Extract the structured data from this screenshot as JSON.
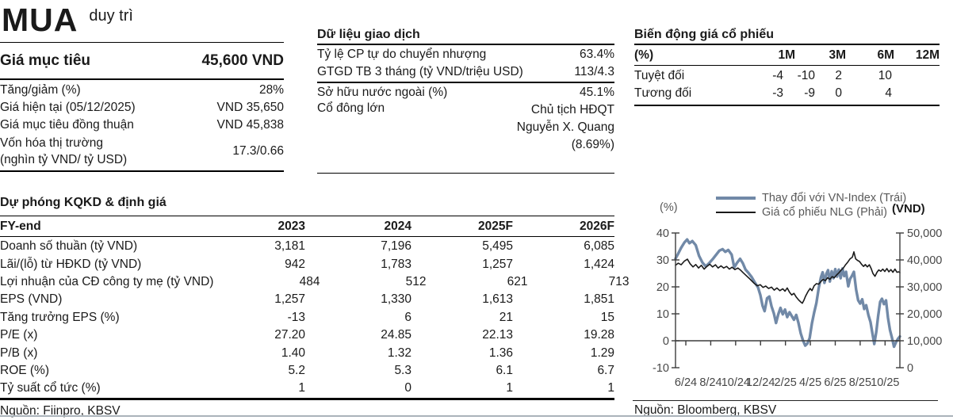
{
  "rating": {
    "action": "MUA",
    "qualifier": "duy trì"
  },
  "target_price": {
    "label": "Giá mục tiêu",
    "value": "45,600 VND",
    "rows": [
      {
        "label": "Tăng/giảm (%)",
        "value": "28%"
      },
      {
        "label": "Giá hiện tại (05/12/2025)",
        "value": "VND 35,650"
      },
      {
        "label": "Giá mục tiêu đồng thuận",
        "value": "VND 45,838"
      },
      {
        "label_lines": [
          "Vốn hóa thị trường",
          "(nghìn tỷ VND/ tỷ USD)"
        ],
        "value": "17.3/0.66"
      }
    ]
  },
  "trading_data": {
    "title": "Dữ liệu giao dịch",
    "group1": [
      {
        "label": "Tỷ lệ CP tự do chuyển nhượng",
        "value": "63.4%"
      },
      {
        "label": "GTGD TB 3 tháng (tỷ VND/triệu USD)",
        "value": "113/4.3"
      }
    ],
    "group2": [
      {
        "label": "Sở hữu nước ngoài (%)",
        "value": "45.1%"
      },
      {
        "label": "Cổ đông lớn",
        "value_lines": [
          "Chủ tịch HĐQT",
          "Nguyễn X. Quang",
          "(8.69%)"
        ]
      }
    ]
  },
  "price_momentum": {
    "title": "Biến động giá cổ phiếu",
    "unit_label": "(%)",
    "col_headers": [
      "1M",
      "3M",
      "6M",
      "12M"
    ],
    "header_right_edges": [
      203,
      267,
      328,
      385
    ],
    "value_right_edges": [
      188,
      228,
      262,
      325
    ],
    "rows": [
      {
        "label": "Tuyệt đối",
        "values": [
          "-4",
          "-10",
          "2",
          "10"
        ]
      },
      {
        "label": "Tương đối",
        "values": [
          "-3",
          "-9",
          "0",
          "4"
        ]
      }
    ]
  },
  "forecast": {
    "title": "Dự phóng KQKD & định giá",
    "col_headers": [
      "FY-end",
      "2023",
      "2024",
      "2025F",
      "2026F"
    ],
    "rows": [
      {
        "label": "Doanh số thuần (tỷ VND)",
        "values": [
          "3,181",
          "7,196",
          "5,495",
          "6,085"
        ]
      },
      {
        "label": "Lãi/(lỗ) từ HĐKD (tỷ VND)",
        "values": [
          "942",
          "1,783",
          "1,257",
          "1,424"
        ]
      },
      {
        "label": "Lợi nhuận của CĐ công ty mẹ  (tỷ VND)",
        "values": [
          "484",
          "512",
          "621",
          "713"
        ]
      },
      {
        "label": "EPS (VND)",
        "values": [
          "1,257",
          "1,330",
          "1,613",
          "1,851"
        ]
      },
      {
        "label": "Tăng trưởng EPS (%)",
        "values": [
          "-13",
          "6",
          "21",
          "15"
        ]
      },
      {
        "label": "P/E (x)",
        "values": [
          "27.20",
          "24.85",
          "22.13",
          "19.28"
        ]
      },
      {
        "label": "P/B (x)",
        "values": [
          "1.40",
          "1.32",
          "1.36",
          "1.29"
        ]
      },
      {
        "label": "ROE (%)",
        "values": [
          "5.2",
          "5.3",
          "6.1",
          "6.7"
        ]
      },
      {
        "label": "Tỷ suất cổ tức (%)",
        "values": [
          "1",
          "0",
          "1",
          "1"
        ]
      }
    ],
    "source": "Nguồn: Fiinpro, KBSV"
  },
  "chart_source": "Nguồn: Bloomberg, KBSV",
  "chart_data": {
    "type": "line",
    "legend": [
      {
        "label": "Thay đổi với VN-Index (Trái)",
        "color": "#7189a7",
        "thickness": 4
      },
      {
        "label": "Giá cổ phiếu NLG (Phải)",
        "color": "#1a1a1a",
        "thickness": 2
      }
    ],
    "left_axis": {
      "label": "(%)",
      "ticks": [
        40,
        30,
        20,
        10,
        0,
        -10
      ],
      "range": [
        -10,
        40
      ]
    },
    "right_axis": {
      "label": "(VND)",
      "tick_values": [
        50000,
        40000,
        30000,
        20000,
        10000,
        0
      ],
      "tick_labels": [
        "50,000",
        "40,000",
        "30,000",
        "20,000",
        "10,000",
        "0"
      ],
      "range": [
        0,
        50000
      ]
    },
    "x_axis": {
      "labels": [
        "6/24",
        "8/24",
        "10/24",
        "12/24",
        "2/25",
        "4/25",
        "6/25",
        "8/25",
        "10/25"
      ],
      "positions": [
        0.046,
        0.157,
        0.268,
        0.379,
        0.49,
        0.601,
        0.712,
        0.823,
        0.934
      ]
    },
    "grid": false,
    "legend_position": "top",
    "series": [
      {
        "name": "Thay đổi với VN-Index (Trái)",
        "axis": "left",
        "color": "#7189a7",
        "stroke_width": 3.4,
        "points": [
          [
            0.0,
            30.5
          ],
          [
            0.01,
            32.0
          ],
          [
            0.025,
            34.5
          ],
          [
            0.04,
            36.5
          ],
          [
            0.052,
            37.6
          ],
          [
            0.062,
            36.2
          ],
          [
            0.075,
            37.0
          ],
          [
            0.09,
            35.5
          ],
          [
            0.105,
            31.5
          ],
          [
            0.12,
            29.0
          ],
          [
            0.135,
            27.6
          ],
          [
            0.15,
            28.8
          ],
          [
            0.165,
            30.2
          ],
          [
            0.18,
            31.8
          ],
          [
            0.195,
            33.4
          ],
          [
            0.21,
            34.0
          ],
          [
            0.222,
            33.0
          ],
          [
            0.235,
            33.7
          ],
          [
            0.25,
            32.0
          ],
          [
            0.262,
            27.2
          ],
          [
            0.275,
            29.0
          ],
          [
            0.288,
            30.4
          ],
          [
            0.3,
            28.8
          ],
          [
            0.312,
            26.4
          ],
          [
            0.325,
            25.2
          ],
          [
            0.34,
            23.6
          ],
          [
            0.355,
            21.4
          ],
          [
            0.368,
            19.8
          ],
          [
            0.378,
            17.0
          ],
          [
            0.388,
            13.0
          ],
          [
            0.397,
            11.0
          ],
          [
            0.408,
            15.8
          ],
          [
            0.418,
            16.4
          ],
          [
            0.428,
            12.8
          ],
          [
            0.438,
            10.2
          ],
          [
            0.448,
            6.6
          ],
          [
            0.458,
            9.8
          ],
          [
            0.468,
            12.2
          ],
          [
            0.478,
            9.8
          ],
          [
            0.488,
            11.6
          ],
          [
            0.498,
            8.8
          ],
          [
            0.508,
            10.6
          ],
          [
            0.518,
            9.2
          ],
          [
            0.528,
            7.8
          ],
          [
            0.538,
            9.6
          ],
          [
            0.548,
            6.6
          ],
          [
            0.558,
            2.8
          ],
          [
            0.568,
            0.2
          ],
          [
            0.578,
            -1.8
          ],
          [
            0.588,
            -1.0
          ],
          [
            0.598,
            1.0
          ],
          [
            0.608,
            6.5
          ],
          [
            0.618,
            10.5
          ],
          [
            0.628,
            14.0
          ],
          [
            0.638,
            19.5
          ],
          [
            0.648,
            23.5
          ],
          [
            0.656,
            25.4
          ],
          [
            0.664,
            21.5
          ],
          [
            0.672,
            24.8
          ],
          [
            0.68,
            26.2
          ],
          [
            0.688,
            22.0
          ],
          [
            0.696,
            25.8
          ],
          [
            0.704,
            23.2
          ],
          [
            0.712,
            26.6
          ],
          [
            0.72,
            23.8
          ],
          [
            0.728,
            26.4
          ],
          [
            0.736,
            23.2
          ],
          [
            0.744,
            26.8
          ],
          [
            0.752,
            24.0
          ],
          [
            0.76,
            25.6
          ],
          [
            0.77,
            20.2
          ],
          [
            0.778,
            23.0
          ],
          [
            0.786,
            24.0
          ],
          [
            0.795,
            25.6
          ],
          [
            0.805,
            19.0
          ],
          [
            0.814,
            15.0
          ],
          [
            0.823,
            13.8
          ],
          [
            0.832,
            15.4
          ],
          [
            0.841,
            11.8
          ],
          [
            0.85,
            13.2
          ],
          [
            0.86,
            9.4
          ],
          [
            0.869,
            7.0
          ],
          [
            0.877,
            3.0
          ],
          [
            0.886,
            -1.2
          ],
          [
            0.895,
            3.4
          ],
          [
            0.903,
            9.0
          ],
          [
            0.912,
            14.4
          ],
          [
            0.92,
            15.6
          ],
          [
            0.929,
            13.6
          ],
          [
            0.938,
            15.0
          ],
          [
            0.947,
            8.5
          ],
          [
            0.956,
            4.0
          ],
          [
            0.965,
            1.0
          ],
          [
            0.974,
            -2.2
          ],
          [
            0.983,
            -0.5
          ],
          [
            0.992,
            0.8
          ],
          [
            1.0,
            1.6
          ]
        ]
      },
      {
        "name": "Giá cổ phiếu NLG (Phải)",
        "axis": "right",
        "color": "#1a1a1a",
        "stroke_width": 1.6,
        "points": [
          [
            0.0,
            38000
          ],
          [
            0.012,
            38800
          ],
          [
            0.025,
            38200
          ],
          [
            0.04,
            39600
          ],
          [
            0.053,
            40300
          ],
          [
            0.065,
            38600
          ],
          [
            0.078,
            37400
          ],
          [
            0.09,
            38300
          ],
          [
            0.103,
            37000
          ],
          [
            0.115,
            38000
          ],
          [
            0.128,
            36600
          ],
          [
            0.14,
            37600
          ],
          [
            0.153,
            38400
          ],
          [
            0.165,
            37400
          ],
          [
            0.178,
            38200
          ],
          [
            0.19,
            37000
          ],
          [
            0.203,
            37800
          ],
          [
            0.215,
            37000
          ],
          [
            0.228,
            37600
          ],
          [
            0.24,
            36600
          ],
          [
            0.252,
            37300
          ],
          [
            0.265,
            36400
          ],
          [
            0.278,
            37000
          ],
          [
            0.29,
            36200
          ],
          [
            0.302,
            35200
          ],
          [
            0.315,
            34200
          ],
          [
            0.328,
            33200
          ],
          [
            0.34,
            32200
          ],
          [
            0.352,
            31200
          ],
          [
            0.365,
            30400
          ],
          [
            0.378,
            30800
          ],
          [
            0.39,
            29800
          ],
          [
            0.402,
            30300
          ],
          [
            0.415,
            29400
          ],
          [
            0.428,
            29900
          ],
          [
            0.44,
            28800
          ],
          [
            0.452,
            29600
          ],
          [
            0.465,
            28600
          ],
          [
            0.478,
            29300
          ],
          [
            0.488,
            28400
          ],
          [
            0.498,
            29600
          ],
          [
            0.508,
            28000
          ],
          [
            0.518,
            27000
          ],
          [
            0.528,
            27600
          ],
          [
            0.538,
            26200
          ],
          [
            0.548,
            25200
          ],
          [
            0.558,
            24400
          ],
          [
            0.565,
            23900
          ],
          [
            0.572,
            25000
          ],
          [
            0.58,
            26600
          ],
          [
            0.59,
            28200
          ],
          [
            0.6,
            29400
          ],
          [
            0.608,
            28600
          ],
          [
            0.618,
            30400
          ],
          [
            0.628,
            31200
          ],
          [
            0.638,
            31000
          ],
          [
            0.648,
            32000
          ],
          [
            0.658,
            32800
          ],
          [
            0.668,
            32300
          ],
          [
            0.678,
            33400
          ],
          [
            0.688,
            32800
          ],
          [
            0.698,
            33800
          ],
          [
            0.708,
            33400
          ],
          [
            0.718,
            34400
          ],
          [
            0.728,
            35200
          ],
          [
            0.738,
            36200
          ],
          [
            0.748,
            37000
          ],
          [
            0.758,
            38200
          ],
          [
            0.768,
            39200
          ],
          [
            0.778,
            40400
          ],
          [
            0.788,
            41000
          ],
          [
            0.795,
            43000
          ],
          [
            0.803,
            40400
          ],
          [
            0.812,
            39800
          ],
          [
            0.82,
            39400
          ],
          [
            0.829,
            38400
          ],
          [
            0.838,
            37600
          ],
          [
            0.846,
            38300
          ],
          [
            0.855,
            37400
          ],
          [
            0.864,
            38200
          ],
          [
            0.872,
            36800
          ],
          [
            0.88,
            35000
          ],
          [
            0.889,
            33900
          ],
          [
            0.898,
            35400
          ],
          [
            0.906,
            36300
          ],
          [
            0.915,
            35800
          ],
          [
            0.924,
            36600
          ],
          [
            0.933,
            35700
          ],
          [
            0.942,
            36800
          ],
          [
            0.951,
            35600
          ],
          [
            0.96,
            36400
          ],
          [
            0.969,
            35400
          ],
          [
            0.978,
            36600
          ],
          [
            0.987,
            35400
          ],
          [
            0.995,
            35600
          ],
          [
            1.0,
            35300
          ]
        ]
      }
    ]
  }
}
